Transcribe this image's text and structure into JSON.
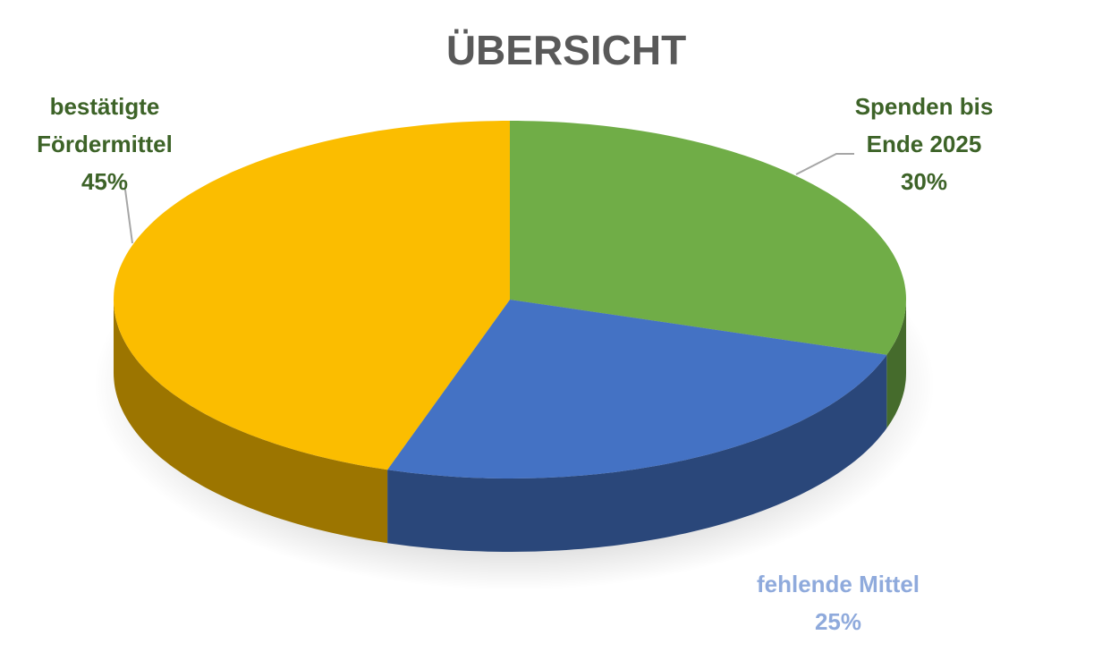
{
  "chart_data": {
    "type": "pie3d",
    "title": "ÜBERSICHT",
    "categories": [
      "Spenden bis Ende 2025",
      "fehlende Mittel",
      "bestätigte Fördermittel"
    ],
    "values": [
      30,
      25,
      45
    ],
    "value_labels": [
      "30%",
      "25%",
      "45%"
    ],
    "colors": [
      "#70ad47",
      "#4472c4",
      "#fbbd00"
    ],
    "label_colors": [
      "#3d6328",
      "#8faadc",
      "#3d6328"
    ]
  }
}
